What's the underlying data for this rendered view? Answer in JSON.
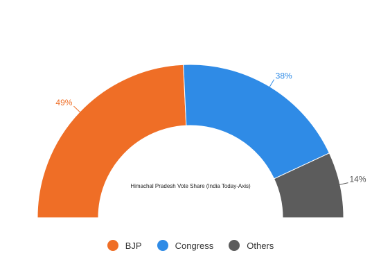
{
  "chart_data": {
    "type": "pie",
    "variant": "semi-donut",
    "title": "Himachal Pradesh Vote Share (India Today-Axis)",
    "categories": [
      "BJP",
      "Congress",
      "Others"
    ],
    "values": [
      49,
      38,
      14
    ],
    "value_labels": [
      "49%",
      "38%",
      "14%"
    ],
    "colors": [
      "#ef6e26",
      "#2f8be6",
      "#5c5c5c"
    ],
    "label_colors": [
      "#ef6e26",
      "#2f8be6",
      "#555555"
    ],
    "legend": {
      "position": "bottom",
      "items": [
        {
          "label": "BJP",
          "color": "#ef6e26"
        },
        {
          "label": "Congress",
          "color": "#2f8be6"
        },
        {
          "label": "Others",
          "color": "#5c5c5c"
        }
      ]
    }
  }
}
